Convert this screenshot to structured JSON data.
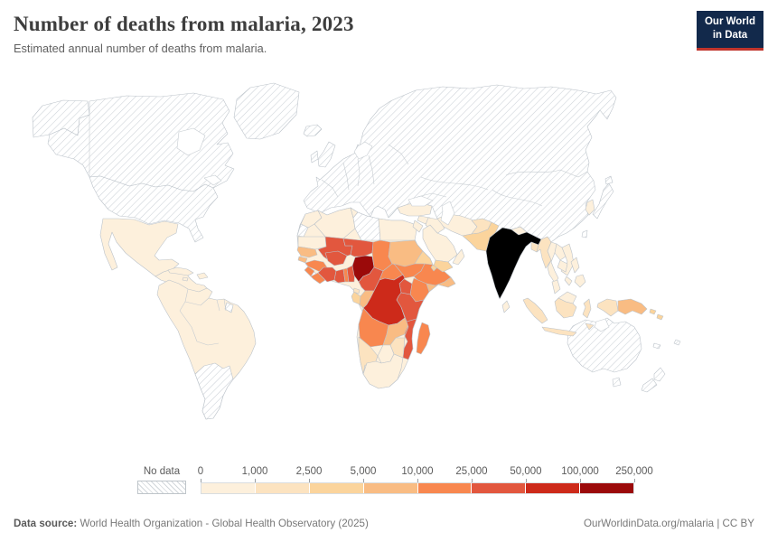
{
  "header": {
    "title": "Number of deaths from malaria, 2023",
    "subtitle": "Estimated annual number of deaths from malaria."
  },
  "logo": {
    "line1": "Our World",
    "line2": "in Data",
    "bg": "#12294b",
    "accent": "#c0342c"
  },
  "legend": {
    "no_data_label": "No data"
  },
  "footer": {
    "source_label": "Data source:",
    "source_text": " World Health Organization - Global Health Observatory (2025)",
    "right_text": "OurWorldinData.org/malaria | CC BY"
  },
  "chart_data": {
    "type": "choropleth",
    "title": "Number of deaths from malaria, 2023",
    "subtitle": "Estimated annual number of deaths from malaria.",
    "year": 2023,
    "unit": "deaths",
    "legend_position": "bottom",
    "no_data_style": "hatched",
    "bin_edges": [
      "0",
      "1,000",
      "2,500",
      "5,000",
      "10,000",
      "25,000",
      "50,000",
      "100,000",
      "250,000"
    ],
    "bin_colors": [
      "#fdf0dc",
      "#fce3c0",
      "#fbd49c",
      "#f9bc83",
      "#f8874f",
      "#e2573e",
      "#cd2a1a",
      "#9b0a0a"
    ],
    "hatch_line_color": "#ccd2d7",
    "border_color": "#bcc3ca",
    "country_bins": {
      "greenland": 0,
      "iceland": 0,
      "alaska": 0,
      "canada": 0,
      "usa": 0,
      "eurasia": 0,
      "uk": 0,
      "ireland": 0,
      "japan": 0,
      "hokkaido": 0,
      "taiwan": 0,
      "australia": 0,
      "tasmania": 0,
      "nz-north": 0,
      "nz-south": 0,
      "new-caledonia": 0,
      "fiji": 0,
      "southern-cone": 0,
      "french-guiana": 0,
      "libya": 0,
      "western-sahara": 0,
      "mexico": 1,
      "central-america": 1,
      "cuba": 1,
      "hispaniola": 1,
      "jamaica": 1,
      "south-america": 1,
      "africa-base": 1,
      "morocco": 1,
      "algeria": 1,
      "tunisia": 1,
      "egypt": 1,
      "mauritania": 1,
      "botswana": 1,
      "south-africa": 1,
      "turkey": 1,
      "syria": 1,
      "iraq": 1,
      "jordan": 1,
      "saudi-arabia": 1,
      "oman": 1,
      "iran": 1,
      "nepal": 1,
      "sri-lanka": 1,
      "thailand": 1,
      "laos": 1,
      "vietnam": 1,
      "cambodia": 1,
      "malaysia-peninsula": 1,
      "malaysia-borneo": 1,
      "south-korea": 1,
      "philippines-north": 1,
      "philippines-south": 1,
      "palawan": 1,
      "afghanistan": 2,
      "myanmar": 2,
      "bangladesh": 2,
      "sumatra": 2,
      "java": 2,
      "kalimantan": 2,
      "sulawesi": 2,
      "west-papua": 2,
      "timor": 2,
      "zimbabwe": 2,
      "namibia": 2,
      "equatorial-guinea": 2,
      "pakistan": 3,
      "yemen": 3,
      "gabon": 3,
      "eritrea": 3,
      "djibouti": 3,
      "rwanda": 3,
      "burundi": 3,
      "solomon-1": 3,
      "solomon-2": 3,
      "senegal": 4,
      "guinea-bissau": 4,
      "sudan": 4,
      "somalia": 4,
      "congo-rep": 4,
      "zambia": 4,
      "papua-new-guinea": 4,
      "guinea": 5,
      "sierra-leone": 5,
      "liberia": 5,
      "togo": 5,
      "chad": 5,
      "central-african-republic": 5,
      "south-sudan": 5,
      "ethiopia": 5,
      "kenya": 5,
      "angola": 5,
      "malawi": 5,
      "madagascar": 5,
      "mali": 6,
      "niger": 6,
      "burkina-faso": 6,
      "cote-divoire": 6,
      "ghana": 6,
      "benin": 6,
      "cameroon": 6,
      "uganda": 6,
      "tanzania": 6,
      "mozambique": 6,
      "drc": 7,
      "nigeria": 8
    }
  }
}
